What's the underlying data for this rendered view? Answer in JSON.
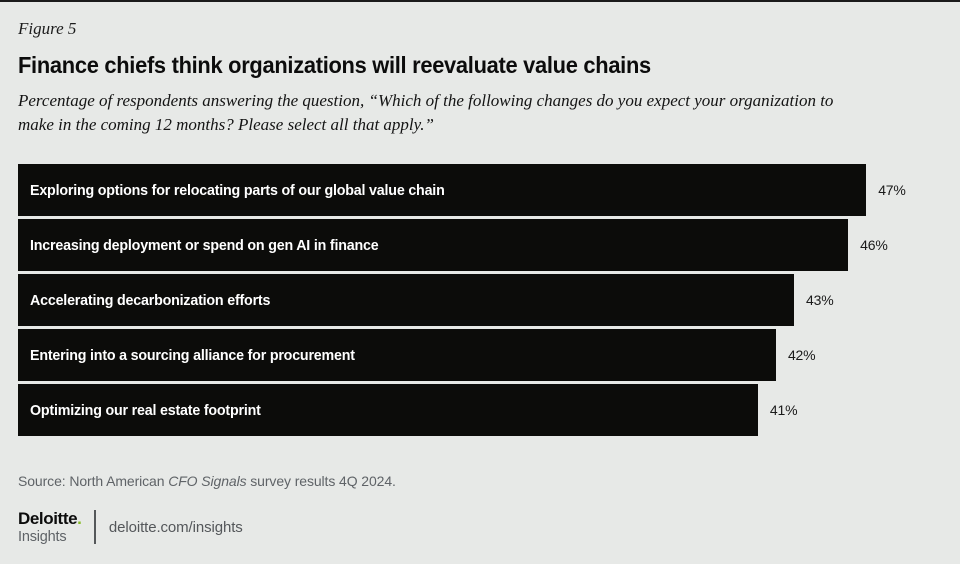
{
  "figure_label": "Figure 5",
  "title": "Finance chiefs think organizations will reevaluate value chains",
  "subtitle": {
    "line1": "Percentage of respondents answering the question, “Which of the following changes do you expect your organization to",
    "line2": "make in the coming 12 months? Please select all that apply.”"
  },
  "chart_data": {
    "type": "bar",
    "orientation": "horizontal",
    "categories": [
      "Exploring options for relocating parts of our global value chain",
      "Increasing deployment or spend on gen AI in finance",
      "Accelerating decarbonization efforts",
      "Entering into a sourcing alliance for procurement",
      "Optimizing our real estate footprint"
    ],
    "values": [
      47,
      46,
      43,
      42,
      41
    ],
    "value_labels": [
      "47%",
      "46%",
      "43%",
      "42%",
      "41%"
    ],
    "xlim": [
      0,
      51.2
    ],
    "grid": false,
    "legend": false,
    "bar_color": "#0c0c0a",
    "bar_text_color": "#ffffff",
    "value_text_color": "#1a1a1a"
  },
  "source": {
    "prefix": "Source: North American ",
    "italic": "CFO Signals",
    "suffix": " survey results 4Q 2024."
  },
  "footer": {
    "brand_name": "Deloitte",
    "brand_dot": ".",
    "brand_sub": "Insights",
    "url": "deloitte.com/insights",
    "brand_green": "#86bc25"
  },
  "colors": {
    "background": "#e7e9e7",
    "bar": "#0c0c0a",
    "muted_text": "#5f6367",
    "title_text": "#0c0c0c"
  }
}
